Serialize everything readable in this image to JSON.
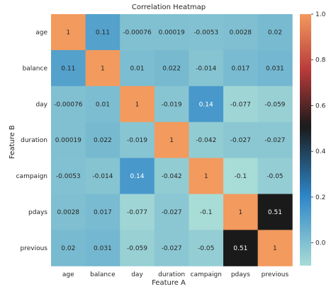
{
  "chart_data": {
    "type": "heatmap",
    "title": "Correlation Heatmap",
    "xlabel": "Feature A",
    "ylabel": "Feature B",
    "categories_x": [
      "age",
      "balance",
      "day",
      "duration",
      "campaign",
      "pdays",
      "previous"
    ],
    "categories_y": [
      "age",
      "balance",
      "day",
      "duration",
      "campaign",
      "pdays",
      "previous"
    ],
    "values": [
      [
        1,
        0.11,
        -0.00076,
        0.00019,
        -0.0053,
        0.0028,
        0.02
      ],
      [
        0.11,
        1,
        0.01,
        0.022,
        -0.014,
        0.017,
        0.031
      ],
      [
        -0.00076,
        0.01,
        1,
        -0.019,
        0.14,
        -0.077,
        -0.059
      ],
      [
        0.00019,
        0.022,
        -0.019,
        1,
        -0.042,
        -0.027,
        -0.027
      ],
      [
        -0.0053,
        -0.014,
        0.14,
        -0.042,
        1,
        -0.1,
        -0.05
      ],
      [
        0.0028,
        0.017,
        -0.077,
        -0.027,
        -0.1,
        1,
        0.51
      ],
      [
        0.02,
        0.031,
        -0.059,
        -0.027,
        -0.05,
        0.51,
        1
      ]
    ],
    "value_labels": [
      [
        "1",
        "0.11",
        "-0.00076",
        "0.00019",
        "-0.0053",
        "0.0028",
        "0.02"
      ],
      [
        "0.11",
        "1",
        "0.01",
        "0.022",
        "-0.014",
        "0.017",
        "0.031"
      ],
      [
        "-0.00076",
        "0.01",
        "1",
        "-0.019",
        "0.14",
        "-0.077",
        "-0.059"
      ],
      [
        "0.00019",
        "0.022",
        "-0.019",
        "1",
        "-0.042",
        "-0.027",
        "-0.027"
      ],
      [
        "-0.0053",
        "-0.014",
        "0.14",
        "-0.042",
        "1",
        "-0.1",
        "-0.05"
      ],
      [
        "0.0028",
        "0.017",
        "-0.077",
        "-0.027",
        "-0.1",
        "1",
        "0.51"
      ],
      [
        "0.02",
        "0.031",
        "-0.059",
        "-0.027",
        "-0.05",
        "0.51",
        "1"
      ]
    ],
    "colorbar": {
      "range": [
        -0.1,
        1.0
      ],
      "ticks": [
        0.0,
        0.2,
        0.4,
        0.6,
        0.8,
        1.0
      ],
      "tick_labels": [
        "0.0",
        "0.2",
        "0.4",
        "0.6",
        "0.8",
        "1.0"
      ],
      "colors": [
        "#a8dcd6",
        "#2e86c8",
        "#1a1a1a",
        "#b83a3a",
        "#f39a5e"
      ],
      "centered_at": 0.51
    }
  }
}
